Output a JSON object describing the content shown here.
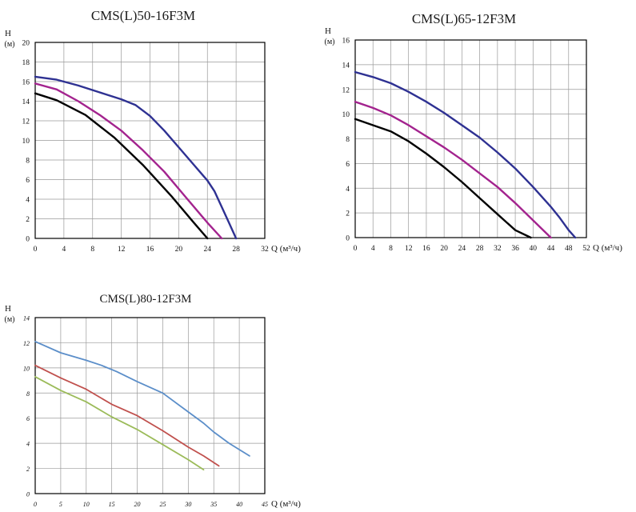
{
  "chart_data": [
    {
      "type": "line",
      "title": "CMS(L)50-16F3M",
      "ylabel": "H",
      "yunit": "(м)",
      "xlabel": "Q (м³/ч)",
      "xlim": [
        0,
        32
      ],
      "ylim": [
        0,
        20
      ],
      "xticks": [
        0,
        4,
        8,
        12,
        16,
        20,
        24,
        28,
        32
      ],
      "yticks": [
        0,
        2,
        4,
        6,
        8,
        10,
        12,
        14,
        16,
        18,
        20
      ],
      "grid": true,
      "series": [
        {
          "color": "#2e3192",
          "x": [
            0,
            3,
            6,
            9,
            12,
            14,
            16,
            18,
            20,
            22,
            24,
            25,
            26,
            27,
            28
          ],
          "y": [
            16.5,
            16.2,
            15.6,
            14.9,
            14.2,
            13.6,
            12.5,
            11.0,
            9.3,
            7.6,
            5.9,
            4.8,
            3.2,
            1.6,
            0
          ]
        },
        {
          "color": "#a3238e",
          "x": [
            0,
            3,
            6,
            9,
            12,
            15,
            18,
            21,
            24,
            26
          ],
          "y": [
            15.8,
            15.2,
            14.0,
            12.6,
            11.0,
            9.0,
            6.8,
            4.2,
            1.6,
            0
          ]
        },
        {
          "color": "#000000",
          "x": [
            0,
            3,
            7,
            11,
            15,
            19,
            22,
            24
          ],
          "y": [
            14.8,
            14.1,
            12.6,
            10.3,
            7.5,
            4.3,
            1.7,
            0
          ]
        }
      ]
    },
    {
      "type": "line",
      "title": "CMS(L)65-12F3M",
      "ylabel": "H",
      "yunit": "(м)",
      "xlabel": "Q (м³/ч)",
      "xlim": [
        0,
        52
      ],
      "ylim": [
        0,
        16
      ],
      "xticks": [
        0,
        4,
        8,
        12,
        16,
        20,
        24,
        28,
        32,
        36,
        40,
        44,
        48,
        52
      ],
      "yticks": [
        0,
        2,
        4,
        6,
        8,
        10,
        12,
        14,
        16
      ],
      "grid": true,
      "series": [
        {
          "color": "#2e3192",
          "x": [
            0,
            4,
            8,
            12,
            16,
            20,
            24,
            28,
            32,
            36,
            40,
            44,
            46,
            48,
            49.5
          ],
          "y": [
            13.4,
            13.0,
            12.5,
            11.8,
            11.0,
            10.1,
            9.1,
            8.1,
            6.9,
            5.6,
            4.1,
            2.5,
            1.6,
            0.6,
            0
          ]
        },
        {
          "color": "#a3238e",
          "x": [
            0,
            4,
            8,
            12,
            16,
            20,
            24,
            28,
            32,
            36,
            40,
            44
          ],
          "y": [
            11.0,
            10.5,
            9.9,
            9.1,
            8.2,
            7.3,
            6.3,
            5.2,
            4.1,
            2.8,
            1.4,
            0
          ]
        },
        {
          "color": "#000000",
          "x": [
            0,
            4,
            8,
            12,
            16,
            20,
            24,
            28,
            32,
            36,
            39.5
          ],
          "y": [
            9.6,
            9.1,
            8.6,
            7.8,
            6.8,
            5.7,
            4.5,
            3.2,
            1.9,
            0.6,
            0
          ]
        }
      ]
    },
    {
      "type": "line",
      "title": "CMS(L)80-12F3M",
      "ylabel": "H",
      "yunit": "(м)",
      "xlabel": "Q (м³/ч)",
      "xlim": [
        0,
        45
      ],
      "ylim": [
        0,
        14
      ],
      "xticks": [
        0,
        5,
        10,
        15,
        20,
        25,
        30,
        35,
        40,
        45
      ],
      "yticks": [
        0,
        2,
        4,
        6,
        8,
        10,
        12,
        14
      ],
      "grid": true,
      "series": [
        {
          "color": "#5b8ec9",
          "x": [
            0,
            5,
            10,
            13,
            16,
            20,
            25,
            30,
            33,
            35,
            38,
            42
          ],
          "y": [
            12.1,
            11.2,
            10.6,
            10.2,
            9.7,
            8.9,
            8.0,
            6.5,
            5.6,
            4.9,
            4.0,
            3.0
          ]
        },
        {
          "color": "#c0504d",
          "x": [
            0,
            5,
            10,
            15,
            20,
            25,
            30,
            33,
            36
          ],
          "y": [
            10.2,
            9.2,
            8.3,
            7.1,
            6.2,
            5.0,
            3.7,
            3.0,
            2.2
          ]
        },
        {
          "color": "#9bbb59",
          "x": [
            0,
            5,
            10,
            15,
            20,
            25,
            30,
            33
          ],
          "y": [
            9.3,
            8.2,
            7.3,
            6.1,
            5.1,
            3.9,
            2.7,
            1.9
          ]
        }
      ]
    }
  ]
}
